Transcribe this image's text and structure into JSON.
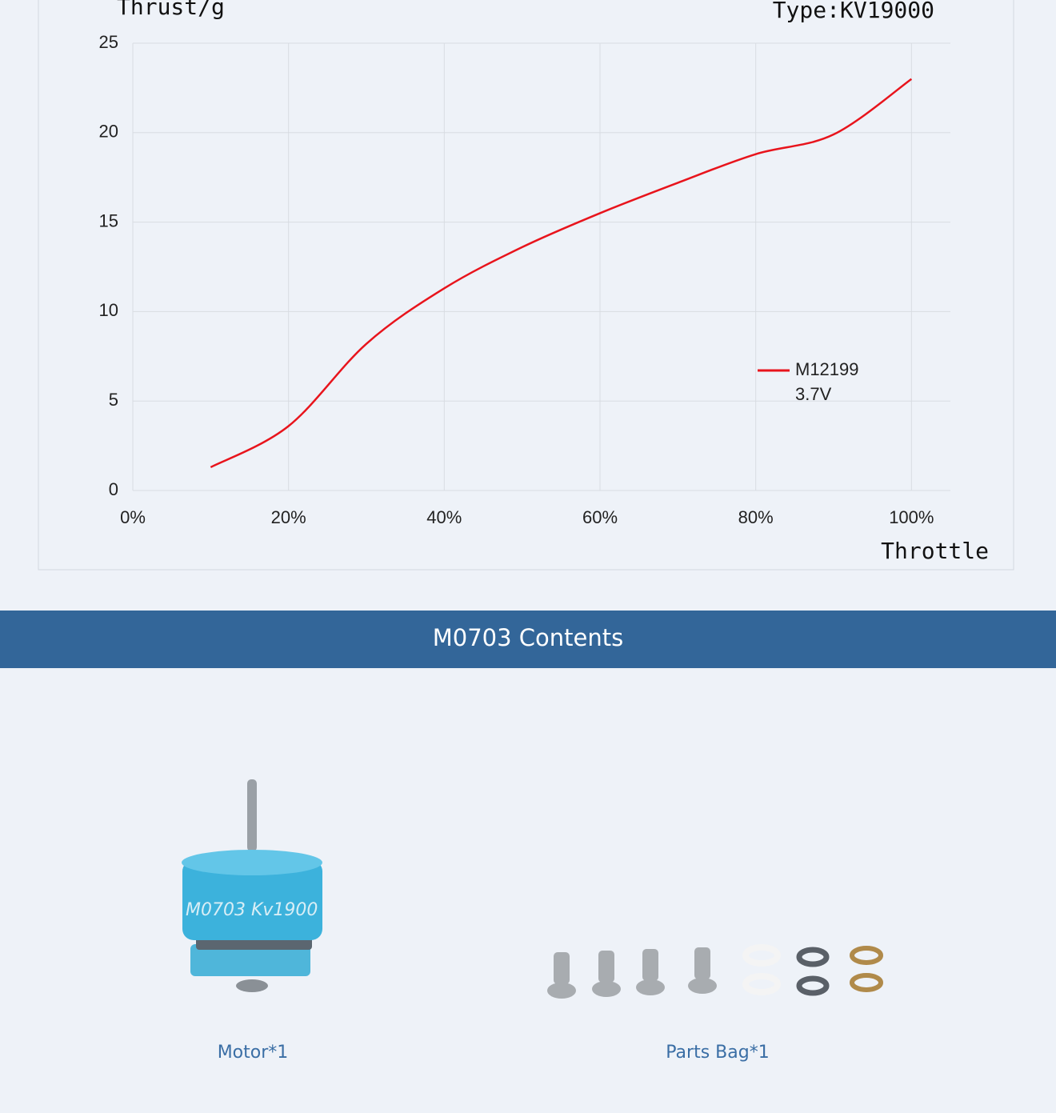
{
  "chart_data": {
    "type": "line",
    "y_label": "Thrust/g",
    "model": "Type:KV19000",
    "x_label": "Throttle",
    "x": [
      10,
      20,
      30,
      40,
      50,
      60,
      70,
      80,
      90,
      100
    ],
    "series": [
      {
        "name": "M12199",
        "note": "3.7V",
        "color": "#e8141c",
        "values": [
          1.3,
          3.6,
          8.2,
          11.3,
          13.6,
          15.5,
          17.2,
          18.8,
          19.9,
          23.0
        ]
      }
    ],
    "xlim": [
      0,
      105
    ],
    "ylim": [
      0,
      25
    ],
    "xticks": [
      {
        "value": 0,
        "label": "0%"
      },
      {
        "value": 20,
        "label": "20%"
      },
      {
        "value": 40,
        "label": "40%"
      },
      {
        "value": 60,
        "label": "60%"
      },
      {
        "value": 80,
        "label": "80%"
      },
      {
        "value": 100,
        "label": "100%"
      }
    ],
    "yticks": [
      0,
      5,
      10,
      15,
      20,
      25
    ],
    "grid": true,
    "legend": "right"
  },
  "banner": {
    "title": "M0703 Contents"
  },
  "items": [
    {
      "label": "Motor*1"
    },
    {
      "label": "Parts Bag*1"
    }
  ]
}
